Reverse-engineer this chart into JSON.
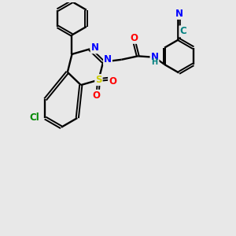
{
  "background_color": "#e8e8e8",
  "bond_color": "#000000",
  "atom_colors": {
    "Cl": "#008800",
    "S": "#cccc00",
    "N": "#0000ff",
    "O": "#ff0000",
    "C_teal": "#008080",
    "H_teal": "#008080",
    "default": "#000000"
  },
  "figsize": [
    3.0,
    3.0
  ],
  "dpi": 100
}
